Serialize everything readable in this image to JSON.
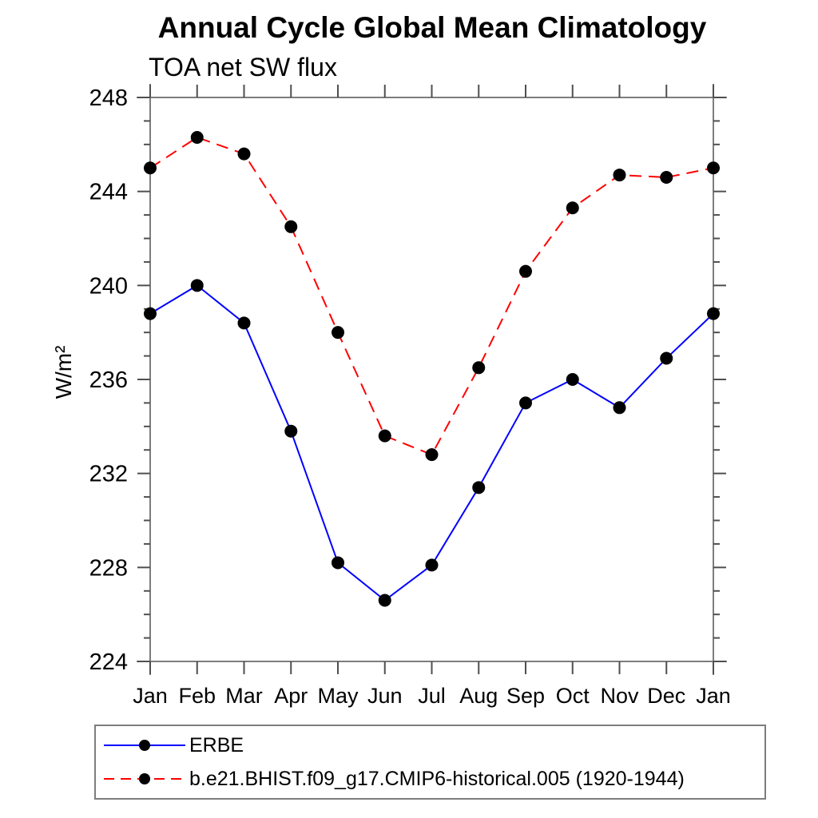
{
  "chart_data": {
    "type": "line",
    "title": "Annual Cycle Global Mean Climatology",
    "subtitle": "TOA net SW flux",
    "ylabel": "W/m²",
    "x_tick_labels": [
      "Jan",
      "Feb",
      "Mar",
      "Apr",
      "May",
      "Jun",
      "Jul",
      "Aug",
      "Sep",
      "Oct",
      "Nov",
      "Dec",
      "Jan"
    ],
    "y_ticks": [
      224,
      228,
      232,
      236,
      240,
      244,
      248
    ],
    "ylim": [
      224,
      248
    ],
    "y_minor_step": 1,
    "grid": false,
    "legend_position": "bottom-left-box",
    "axis_color": "#7d7d7d",
    "tick_color": "#4f4f4f",
    "marker_color": "#000000",
    "series": [
      {
        "name": "ERBE",
        "color": "#0000ff",
        "style": "solid",
        "marker": "filled-circle",
        "values": [
          238.8,
          240.0,
          238.4,
          233.8,
          228.2,
          226.6,
          228.1,
          231.4,
          235.0,
          236.0,
          234.8,
          236.9,
          238.8
        ]
      },
      {
        "name": "b.e21.BHIST.f09_g17.CMIP6-historical.005 (1920-1944)",
        "color": "#ff0000",
        "style": "dashed",
        "marker": "filled-circle",
        "values": [
          245.0,
          246.3,
          245.6,
          242.5,
          238.0,
          233.6,
          232.8,
          236.5,
          240.6,
          243.3,
          244.7,
          244.6,
          245.0
        ]
      }
    ]
  }
}
